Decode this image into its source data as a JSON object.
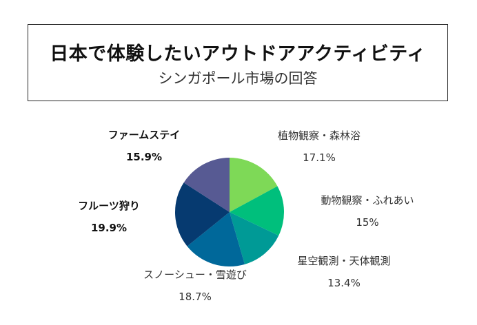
{
  "chart_data": {
    "type": "pie",
    "title": "日本で体験したいアウトドアアクティビティ",
    "subtitle": "シンガポール市場の回答",
    "slices": [
      {
        "label": "植物観察・森林浴",
        "value": 17.1,
        "value_label": "17.1%",
        "color": "#7ed957"
      },
      {
        "label": "動物観察・ふれあい",
        "value": 15,
        "value_label": "15%",
        "color": "#00bf7c"
      },
      {
        "label": "星空観測・天体観測",
        "value": 13.4,
        "value_label": "13.4%",
        "color": "#009a96"
      },
      {
        "label": "スノーシュー・雪遊び",
        "value": 18.7,
        "value_label": "18.7%",
        "color": "#00689a"
      },
      {
        "label": "フルーツ狩り",
        "value": 19.9,
        "value_label": "19.9%",
        "color": "#063a70"
      },
      {
        "label": "ファームステイ",
        "value": 15.9,
        "value_label": "15.9%",
        "color": "#575a93"
      }
    ],
    "start": "top",
    "direction": "clockwise"
  }
}
